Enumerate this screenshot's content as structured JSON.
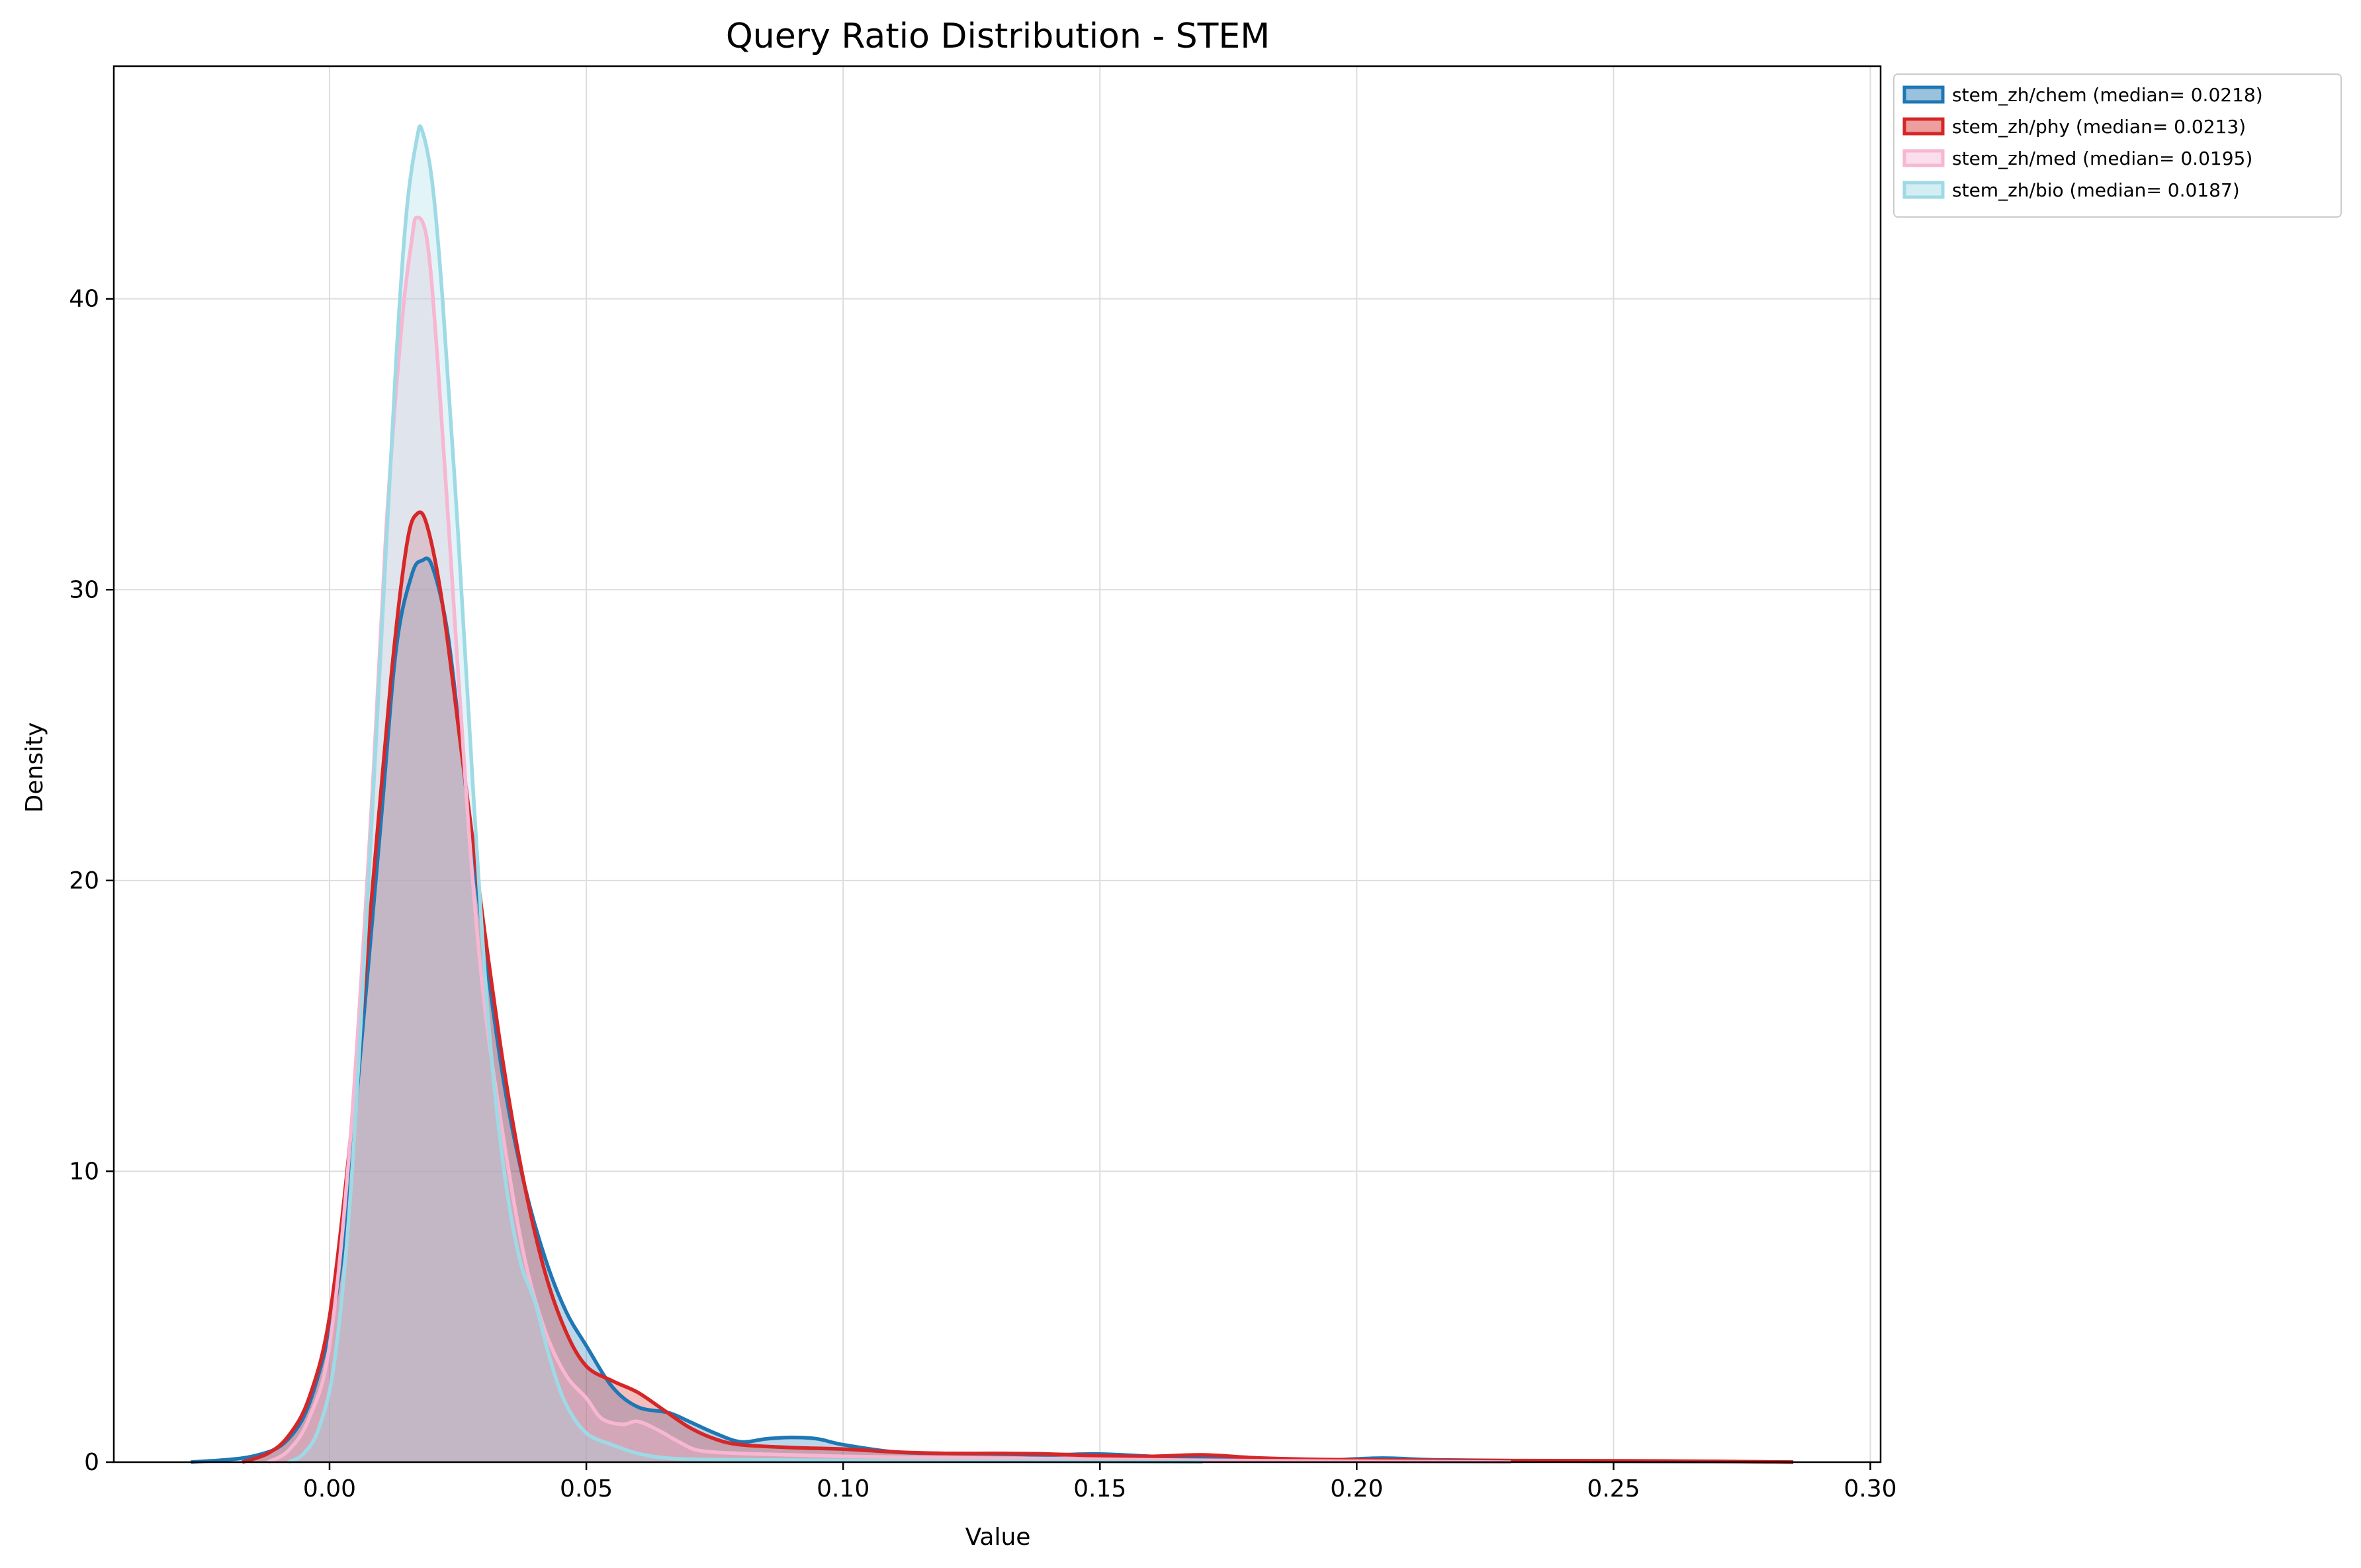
{
  "chart_data": {
    "type": "area",
    "title": "Query Ratio Distribution - STEM",
    "xlabel": "Value",
    "ylabel": "Density",
    "xlim": [
      -0.042,
      0.302
    ],
    "ylim": [
      0,
      48
    ],
    "xticks": [
      0.0,
      0.05,
      0.1,
      0.15,
      0.2,
      0.25,
      0.3
    ],
    "xtick_labels": [
      "0.00",
      "0.05",
      "0.10",
      "0.15",
      "0.20",
      "0.25",
      "0.30"
    ],
    "yticks": [
      0,
      10,
      20,
      30,
      40
    ],
    "ytick_labels": [
      "0",
      "10",
      "20",
      "30",
      "40"
    ],
    "grid": true,
    "legend_position": "outside-top-right",
    "series": [
      {
        "name": "stem_zh/chem (median= 0.0218)",
        "color": "#1f77b4",
        "points": [
          [
            -0.027,
            0
          ],
          [
            -0.015,
            0.2
          ],
          [
            -0.008,
            0.8
          ],
          [
            -0.003,
            2.5
          ],
          [
            0.002,
            6.5
          ],
          [
            0.006,
            14
          ],
          [
            0.01,
            22
          ],
          [
            0.013,
            28
          ],
          [
            0.016,
            30.5
          ],
          [
            0.018,
            31
          ],
          [
            0.02,
            30.8
          ],
          [
            0.023,
            28.5
          ],
          [
            0.026,
            24
          ],
          [
            0.03,
            18
          ],
          [
            0.034,
            13
          ],
          [
            0.038,
            9.5
          ],
          [
            0.042,
            7
          ],
          [
            0.046,
            5.2
          ],
          [
            0.05,
            4
          ],
          [
            0.055,
            2.6
          ],
          [
            0.06,
            1.9
          ],
          [
            0.066,
            1.7
          ],
          [
            0.07,
            1.4
          ],
          [
            0.075,
            1
          ],
          [
            0.08,
            0.7
          ],
          [
            0.085,
            0.8
          ],
          [
            0.09,
            0.85
          ],
          [
            0.095,
            0.8
          ],
          [
            0.1,
            0.6
          ],
          [
            0.11,
            0.35
          ],
          [
            0.12,
            0.3
          ],
          [
            0.13,
            0.28
          ],
          [
            0.14,
            0.25
          ],
          [
            0.15,
            0.28
          ],
          [
            0.16,
            0.2
          ],
          [
            0.17,
            0.15
          ],
          [
            0.18,
            0.1
          ],
          [
            0.195,
            0.08
          ],
          [
            0.205,
            0.14
          ],
          [
            0.215,
            0.08
          ],
          [
            0.23,
            0.05
          ],
          [
            0.25,
            0.03
          ],
          [
            0.27,
            0.02
          ],
          [
            0.285,
            0
          ]
        ]
      },
      {
        "name": "stem_zh/phy (median= 0.0213)",
        "color": "#d62728",
        "points": [
          [
            -0.017,
            0
          ],
          [
            -0.012,
            0.3
          ],
          [
            -0.008,
            0.9
          ],
          [
            -0.004,
            2.2
          ],
          [
            0.0,
            5
          ],
          [
            0.004,
            11
          ],
          [
            0.008,
            19
          ],
          [
            0.012,
            27
          ],
          [
            0.015,
            31.5
          ],
          [
            0.017,
            32.6
          ],
          [
            0.019,
            32.2
          ],
          [
            0.022,
            29.5
          ],
          [
            0.026,
            24
          ],
          [
            0.03,
            18.5
          ],
          [
            0.034,
            13.5
          ],
          [
            0.038,
            9.5
          ],
          [
            0.042,
            6.5
          ],
          [
            0.046,
            4.5
          ],
          [
            0.05,
            3.3
          ],
          [
            0.055,
            2.8
          ],
          [
            0.06,
            2.4
          ],
          [
            0.065,
            1.8
          ],
          [
            0.07,
            1.2
          ],
          [
            0.075,
            0.8
          ],
          [
            0.08,
            0.6
          ],
          [
            0.09,
            0.5
          ],
          [
            0.1,
            0.45
          ],
          [
            0.11,
            0.35
          ],
          [
            0.12,
            0.3
          ],
          [
            0.13,
            0.3
          ],
          [
            0.14,
            0.28
          ],
          [
            0.15,
            0.22
          ],
          [
            0.16,
            0.2
          ],
          [
            0.17,
            0.25
          ],
          [
            0.18,
            0.15
          ],
          [
            0.19,
            0.1
          ],
          [
            0.2,
            0.08
          ],
          [
            0.22,
            0.06
          ],
          [
            0.24,
            0.05
          ],
          [
            0.26,
            0.04
          ],
          [
            0.285,
            0
          ]
        ]
      },
      {
        "name": "stem_zh/med (median= 0.0195)",
        "color": "#f7b6d2",
        "points": [
          [
            -0.012,
            0
          ],
          [
            -0.008,
            0.4
          ],
          [
            -0.004,
            1.5
          ],
          [
            0.0,
            4
          ],
          [
            0.004,
            11
          ],
          [
            0.008,
            22
          ],
          [
            0.011,
            32
          ],
          [
            0.014,
            39
          ],
          [
            0.016,
            42
          ],
          [
            0.017,
            42.8
          ],
          [
            0.019,
            42
          ],
          [
            0.021,
            38
          ],
          [
            0.024,
            30
          ],
          [
            0.027,
            22
          ],
          [
            0.03,
            16
          ],
          [
            0.034,
            11
          ],
          [
            0.038,
            7
          ],
          [
            0.042,
            4.5
          ],
          [
            0.046,
            3
          ],
          [
            0.05,
            2.2
          ],
          [
            0.053,
            1.5
          ],
          [
            0.057,
            1.3
          ],
          [
            0.06,
            1.4
          ],
          [
            0.064,
            1.1
          ],
          [
            0.068,
            0.7
          ],
          [
            0.072,
            0.4
          ],
          [
            0.08,
            0.3
          ],
          [
            0.09,
            0.25
          ],
          [
            0.1,
            0.2
          ],
          [
            0.12,
            0.15
          ],
          [
            0.14,
            0.12
          ],
          [
            0.16,
            0.08
          ],
          [
            0.18,
            0.05
          ],
          [
            0.2,
            0.03
          ],
          [
            0.23,
            0
          ]
        ]
      },
      {
        "name": "stem_zh/bio (median= 0.0187)",
        "color": "#9edae5",
        "points": [
          [
            -0.008,
            0
          ],
          [
            -0.005,
            0.3
          ],
          [
            -0.002,
            1.2
          ],
          [
            0.001,
            3.5
          ],
          [
            0.004,
            9
          ],
          [
            0.007,
            18
          ],
          [
            0.01,
            28
          ],
          [
            0.013,
            38
          ],
          [
            0.015,
            43
          ],
          [
            0.017,
            45.5
          ],
          [
            0.018,
            45.8
          ],
          [
            0.02,
            44
          ],
          [
            0.022,
            40
          ],
          [
            0.025,
            32
          ],
          [
            0.028,
            23
          ],
          [
            0.031,
            15
          ],
          [
            0.034,
            10
          ],
          [
            0.037,
            7
          ],
          [
            0.04,
            5.5
          ],
          [
            0.043,
            3.5
          ],
          [
            0.046,
            2
          ],
          [
            0.05,
            1
          ],
          [
            0.055,
            0.6
          ],
          [
            0.06,
            0.3
          ],
          [
            0.065,
            0.15
          ],
          [
            0.07,
            0.1
          ],
          [
            0.08,
            0.08
          ],
          [
            0.1,
            0.06
          ],
          [
            0.12,
            0.04
          ],
          [
            0.15,
            0.02
          ],
          [
            0.17,
            0
          ]
        ]
      }
    ]
  }
}
